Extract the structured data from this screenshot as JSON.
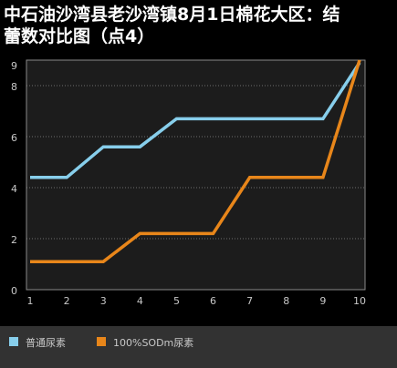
{
  "chart_data": {
    "type": "line",
    "title_lines": [
      "中石油沙湾县老沙湾镇8月1日棉花大区：结",
      "蕾数对比图（点4）"
    ],
    "xlabel": "",
    "ylabel": "",
    "categories": [
      "1",
      "2",
      "3",
      "4",
      "5",
      "6",
      "7",
      "8",
      "9",
      "10"
    ],
    "yticks": [
      "0",
      "2",
      "4",
      "6",
      "8"
    ],
    "top_tick": "9",
    "ylim": [
      0,
      9
    ],
    "grid": "horizontal dotted",
    "legend_position": "bottom",
    "series": [
      {
        "name": "普通尿素",
        "color": "#87ceeb",
        "values": [
          4.4,
          4.4,
          5.6,
          5.6,
          6.7,
          6.7,
          6.7,
          6.7,
          6.7,
          8.9
        ]
      },
      {
        "name": "100%SODm尿素",
        "color": "#e8861a",
        "values": [
          1.1,
          1.1,
          1.1,
          2.2,
          2.2,
          2.2,
          4.4,
          4.4,
          4.4,
          9.0
        ]
      }
    ]
  },
  "colors": {
    "background": "#000000",
    "plot_background": "#1c1c1c",
    "legend_background": "#323232",
    "axis": "#8a8a8a",
    "text": "#c8c8c8",
    "title": "#ffffff"
  }
}
